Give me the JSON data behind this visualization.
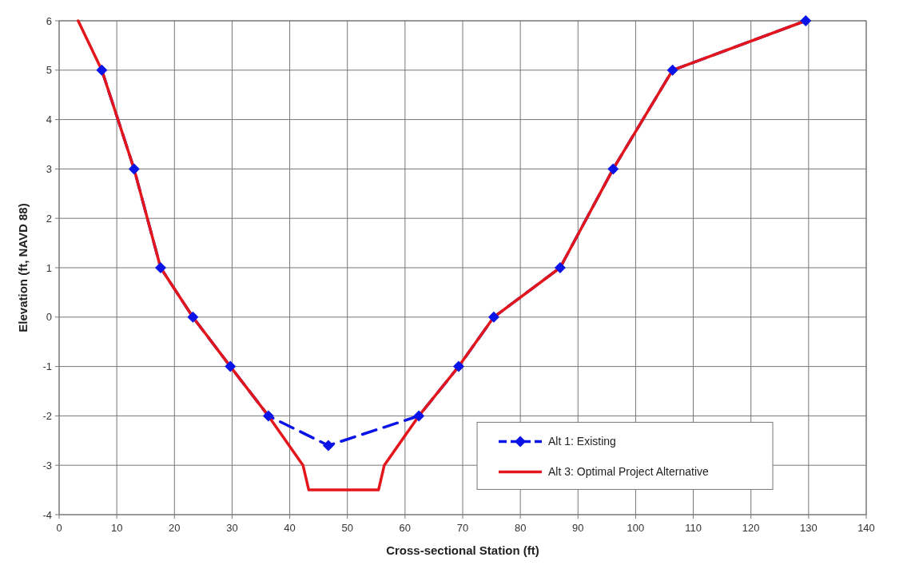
{
  "chart_data": {
    "type": "line",
    "xlabel": "Cross-sectional Station (ft)",
    "ylabel": "Elevation (ft, NAVD 88)",
    "xlim": [
      0,
      140
    ],
    "xticks": [
      0,
      10,
      20,
      30,
      40,
      50,
      60,
      70,
      80,
      90,
      100,
      110,
      120,
      130,
      140
    ],
    "ylim": [
      -4,
      6
    ],
    "yticks": [
      -4,
      -3,
      -2,
      -1,
      0,
      1,
      2,
      3,
      4,
      5,
      6
    ],
    "grid": true,
    "legend": "bottom right",
    "series": [
      {
        "name": "Alt 1: Existing",
        "color": "#0a14e6",
        "marker": "diamond",
        "line_style": "dashed",
        "x": [
          7.4,
          13,
          17.6,
          23.2,
          29.7,
          36.3,
          46.7,
          62.4,
          69.3,
          75.4,
          86.9,
          96.1,
          106.4,
          129.5
        ],
        "values": [
          5,
          3,
          1,
          0,
          -1,
          -2,
          -2.6,
          -2,
          -1,
          0,
          1,
          3,
          5,
          6
        ]
      },
      {
        "name": "Alt 3: Optimal Project Alternative",
        "color": "#e3161c",
        "marker": "none",
        "line_style": "solid",
        "x": [
          3.3,
          7.4,
          13,
          17.6,
          23.2,
          29.7,
          36.3,
          42.3,
          43.3,
          55.4,
          56.4,
          62.4,
          69.3,
          75.4,
          86.9,
          96.1,
          106.4,
          129.5
        ],
        "values": [
          6,
          5,
          3,
          1,
          0,
          -1,
          -2,
          -3,
          -3.5,
          -3.5,
          -3,
          -2,
          -1,
          0,
          1,
          3,
          5,
          6
        ]
      }
    ]
  }
}
